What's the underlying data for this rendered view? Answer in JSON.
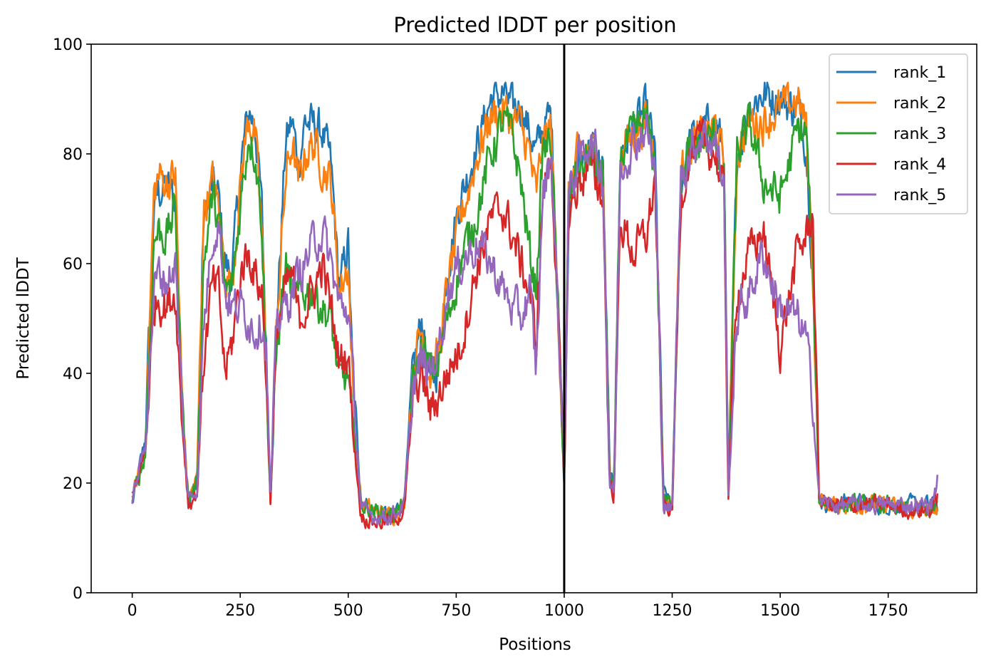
{
  "chart_data": {
    "type": "line",
    "title": "Predicted lDDT per position",
    "xlabel": "Positions",
    "ylabel": "Predicted lDDT",
    "xlim": [
      -95,
      1955
    ],
    "ylim": [
      0,
      100
    ],
    "x_ticks": [
      0,
      250,
      500,
      750,
      1000,
      1250,
      1500,
      1750
    ],
    "y_ticks": [
      0,
      20,
      40,
      60,
      80,
      100
    ],
    "vline_x": 1000,
    "grid": false,
    "legend_position": "top-right",
    "x": [
      0,
      30,
      50,
      60,
      80,
      100,
      115,
      130,
      150,
      165,
      185,
      200,
      215,
      230,
      255,
      270,
      285,
      300,
      310,
      320,
      335,
      355,
      370,
      385,
      400,
      420,
      440,
      460,
      480,
      500,
      510,
      530,
      560,
      600,
      630,
      650,
      670,
      690,
      710,
      730,
      760,
      800,
      830,
      860,
      880,
      900,
      920,
      935,
      950,
      970,
      1000,
      1010,
      1030,
      1060,
      1090,
      1105,
      1115,
      1130,
      1160,
      1190,
      1210,
      1230,
      1250,
      1270,
      1290,
      1320,
      1350,
      1370,
      1380,
      1400,
      1430,
      1460,
      1500,
      1540,
      1560,
      1575,
      1590,
      1620,
      1660,
      1700,
      1750,
      1800,
      1850,
      1865
    ],
    "series": [
      {
        "name": "rank_1",
        "color": "#1f77b4",
        "values": [
          16,
          28,
          70,
          73,
          74,
          72,
          35,
          17,
          20,
          68,
          74,
          72,
          60,
          58,
          80,
          88,
          85,
          70,
          45,
          18,
          50,
          82,
          86,
          78,
          86,
          85,
          84,
          78,
          55,
          64,
          40,
          17,
          15,
          14,
          17,
          40,
          50,
          38,
          42,
          60,
          72,
          82,
          90,
          91,
          88,
          89,
          84,
          80,
          85,
          87,
          20,
          70,
          78,
          82,
          77,
          22,
          18,
          80,
          85,
          88,
          80,
          18,
          16,
          75,
          82,
          84,
          86,
          80,
          18,
          80,
          89,
          91,
          90,
          88,
          82,
          60,
          17,
          16,
          17,
          16,
          16,
          16,
          16,
          16
        ]
      },
      {
        "name": "rank_2",
        "color": "#ff7f0e",
        "values": [
          17,
          26,
          72,
          76,
          75,
          76,
          36,
          17,
          21,
          70,
          75,
          70,
          58,
          56,
          78,
          87,
          83,
          66,
          42,
          17,
          50,
          75,
          82,
          74,
          80,
          82,
          78,
          75,
          55,
          60,
          38,
          16,
          15,
          14,
          16,
          42,
          48,
          40,
          44,
          56,
          68,
          80,
          87,
          88,
          86,
          85,
          80,
          72,
          82,
          85,
          22,
          72,
          79,
          81,
          77,
          22,
          18,
          80,
          84,
          86,
          80,
          17,
          16,
          76,
          81,
          83,
          85,
          78,
          18,
          80,
          86,
          86,
          88,
          90,
          85,
          60,
          17,
          16,
          16,
          16,
          16,
          15,
          15,
          15
        ]
      },
      {
        "name": "rank_3",
        "color": "#2ca02c",
        "values": [
          17,
          25,
          64,
          66,
          65,
          70,
          35,
          17,
          20,
          60,
          72,
          68,
          55,
          55,
          74,
          84,
          80,
          68,
          40,
          17,
          45,
          60,
          55,
          53,
          55,
          55,
          52,
          50,
          38,
          40,
          30,
          16,
          15,
          14,
          16,
          38,
          45,
          40,
          42,
          50,
          60,
          70,
          80,
          86,
          83,
          75,
          62,
          55,
          80,
          83,
          22,
          70,
          77,
          80,
          75,
          22,
          18,
          80,
          83,
          86,
          78,
          17,
          16,
          75,
          80,
          82,
          83,
          75,
          18,
          80,
          85,
          75,
          72,
          84,
          84,
          60,
          17,
          16,
          16,
          16,
          16,
          15,
          15,
          16
        ]
      },
      {
        "name": "rank_4",
        "color": "#d62728",
        "values": [
          17,
          26,
          52,
          54,
          52,
          55,
          32,
          16,
          18,
          42,
          56,
          55,
          40,
          45,
          60,
          62,
          58,
          55,
          40,
          17,
          48,
          55,
          58,
          50,
          52,
          55,
          60,
          52,
          42,
          44,
          30,
          14,
          13,
          13,
          15,
          35,
          40,
          33,
          36,
          40,
          45,
          60,
          68,
          70,
          65,
          60,
          55,
          45,
          72,
          80,
          21,
          68,
          74,
          78,
          72,
          20,
          18,
          68,
          62,
          65,
          75,
          16,
          15,
          72,
          80,
          82,
          80,
          72,
          18,
          55,
          62,
          66,
          45,
          62,
          65,
          70,
          17,
          16,
          16,
          16,
          16,
          15,
          15,
          18
        ]
      },
      {
        "name": "rank_5",
        "color": "#9467bd",
        "values": [
          17,
          27,
          55,
          58,
          57,
          60,
          34,
          17,
          19,
          48,
          65,
          68,
          55,
          52,
          52,
          50,
          48,
          50,
          45,
          17,
          50,
          52,
          55,
          58,
          60,
          64,
          66,
          60,
          52,
          52,
          40,
          15,
          14,
          14,
          16,
          38,
          42,
          40,
          45,
          55,
          60,
          64,
          60,
          55,
          52,
          50,
          55,
          40,
          72,
          80,
          24,
          72,
          78,
          83,
          76,
          20,
          18,
          78,
          82,
          85,
          77,
          16,
          15,
          76,
          80,
          84,
          82,
          74,
          18,
          50,
          55,
          62,
          52,
          50,
          46,
          36,
          17,
          16,
          16,
          16,
          16,
          16,
          16,
          21
        ]
      }
    ]
  }
}
